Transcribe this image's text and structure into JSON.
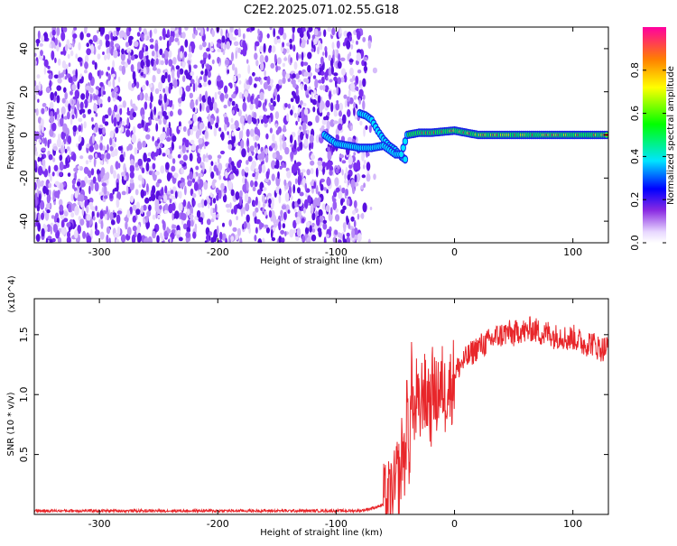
{
  "title": "C2E2.2025.071.02.55.G18",
  "chart_data": [
    {
      "type": "heatmap",
      "xlabel": "Height of straight line (km)",
      "ylabel": "Frequency (Hz)",
      "xlim": [
        -355,
        130
      ],
      "ylim": [
        -50,
        50
      ],
      "xticks": [
        -300,
        -200,
        -100,
        0,
        100
      ],
      "xtick_labels": [
        "-300",
        "-200",
        "-100",
        "0",
        "100"
      ],
      "yticks": [
        -40,
        -20,
        0,
        20,
        40
      ],
      "ytick_labels": [
        "-40",
        "-20",
        "0",
        "20",
        "40"
      ],
      "colorbar": {
        "label": "Normalized spectral amplitude",
        "range": [
          0,
          1
        ],
        "ticks": [
          0.0,
          0.2,
          0.4,
          0.6,
          0.8
        ],
        "tick_labels": [
          "0.0",
          "0.2",
          "0.4",
          "0.6",
          "0.8"
        ]
      },
      "features": [
        {
          "description": "low-amplitude noise",
          "x_range": [
            -355,
            -75
          ],
          "amplitude": 0.15
        },
        {
          "description": "main tone",
          "points": [
            [
              -110,
              0
            ],
            [
              -100,
              -4
            ],
            [
              -90,
              -5
            ],
            [
              -80,
              -6
            ],
            [
              -70,
              -6
            ],
            [
              -60,
              -5
            ],
            [
              -55,
              -7
            ],
            [
              -50,
              -9
            ],
            [
              -45,
              -9
            ],
            [
              -40,
              0
            ],
            [
              -30,
              1
            ],
            [
              -20,
              1
            ],
            [
              0,
              2
            ],
            [
              20,
              0
            ],
            [
              50,
              0
            ],
            [
              80,
              0
            ],
            [
              130,
              0
            ]
          ]
        },
        {
          "description": "secondary tone",
          "points": [
            [
              -80,
              10
            ],
            [
              -75,
              9
            ],
            [
              -70,
              7
            ],
            [
              -65,
              2
            ],
            [
              -60,
              -2
            ],
            [
              -55,
              -5
            ],
            [
              -50,
              -7
            ],
            [
              -45,
              -10
            ],
            [
              -40,
              -12
            ]
          ]
        }
      ]
    },
    {
      "type": "line",
      "xlabel": "Height of straight line (km)",
      "ylabel": "SNR (10 * v/v)",
      "y_multiplier": "(x10^4)",
      "xlim": [
        -355,
        130
      ],
      "ylim": [
        0,
        18000
      ],
      "xticks": [
        -300,
        -200,
        -100,
        0,
        100
      ],
      "xtick_labels": [
        "-300",
        "-200",
        "-100",
        "0",
        "100"
      ],
      "yticks": [
        5000,
        10000,
        15000
      ],
      "ytick_labels": [
        "0.5",
        "1.0",
        "1.5"
      ],
      "series": [
        {
          "color": "#e8262a",
          "x": [
            -355,
            -300,
            -250,
            -200,
            -150,
            -100,
            -80,
            -70,
            -60,
            -55,
            -50,
            -48,
            -46,
            -44,
            -42,
            -40,
            -38,
            -36,
            -34,
            -32,
            -30,
            -28,
            -26,
            -24,
            -22,
            -20,
            -18,
            -16,
            -14,
            -12,
            -10,
            -8,
            -6,
            -4,
            -2,
            0,
            5,
            10,
            15,
            20,
            25,
            30,
            35,
            40,
            45,
            50,
            55,
            60,
            65,
            70,
            75,
            80,
            85,
            90,
            95,
            100,
            105,
            110,
            115,
            120,
            125,
            130
          ],
          "y": [
            300,
            300,
            300,
            300,
            300,
            300,
            300,
            500,
            800,
            1200,
            2000,
            3500,
            2500,
            6000,
            4000,
            9000,
            5000,
            12000,
            7000,
            10000,
            8000,
            9500,
            11000,
            9000,
            10500,
            8500,
            11500,
            9000,
            10800,
            10000,
            11000,
            9800,
            11200,
            10500,
            11000,
            11800,
            12500,
            13000,
            13500,
            14000,
            14200,
            14500,
            14800,
            15000,
            15200,
            15000,
            15400,
            15200,
            15500,
            15300,
            15000,
            15200,
            14800,
            15000,
            14600,
            14800,
            14500,
            14200,
            14400,
            14000,
            13800,
            14000
          ]
        }
      ]
    }
  ]
}
